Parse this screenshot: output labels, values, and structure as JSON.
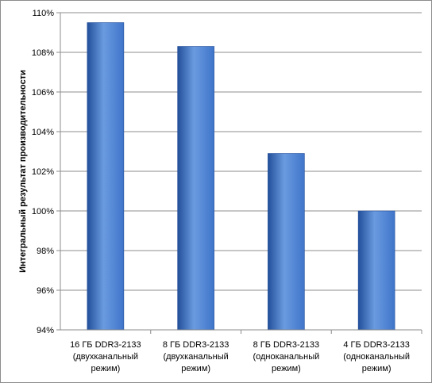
{
  "chart_data": {
    "type": "bar",
    "title": "",
    "xlabel": "",
    "ylabel": "Интегральный результат производительности",
    "categories": [
      [
        "16 ГБ DDR3-2133",
        "(двухканальный",
        "режим)"
      ],
      [
        "8 ГБ DDR3-2133",
        "(двухканальный",
        "режим)"
      ],
      [
        "8 ГБ DDR3-2133",
        "(одноканальный",
        "режим)"
      ],
      [
        "4 ГБ DDR3-2133",
        "(одноканальный",
        "режим)"
      ]
    ],
    "values": [
      109.5,
      108.3,
      102.9,
      100.0
    ],
    "ylim": [
      94,
      110
    ],
    "yticks": [
      94,
      96,
      98,
      100,
      102,
      104,
      106,
      108,
      110
    ],
    "ytick_labels": [
      "94%",
      "96%",
      "98%",
      "100%",
      "102%",
      "104%",
      "106%",
      "108%",
      "110%"
    ],
    "grid": true,
    "legend": "none",
    "colors": {
      "bar_light": "#6a9be0",
      "bar_mid": "#3f74c9",
      "bar_dark": "#234f9a",
      "grid": "#8c8c8c",
      "axis": "#8c8c8c"
    }
  }
}
